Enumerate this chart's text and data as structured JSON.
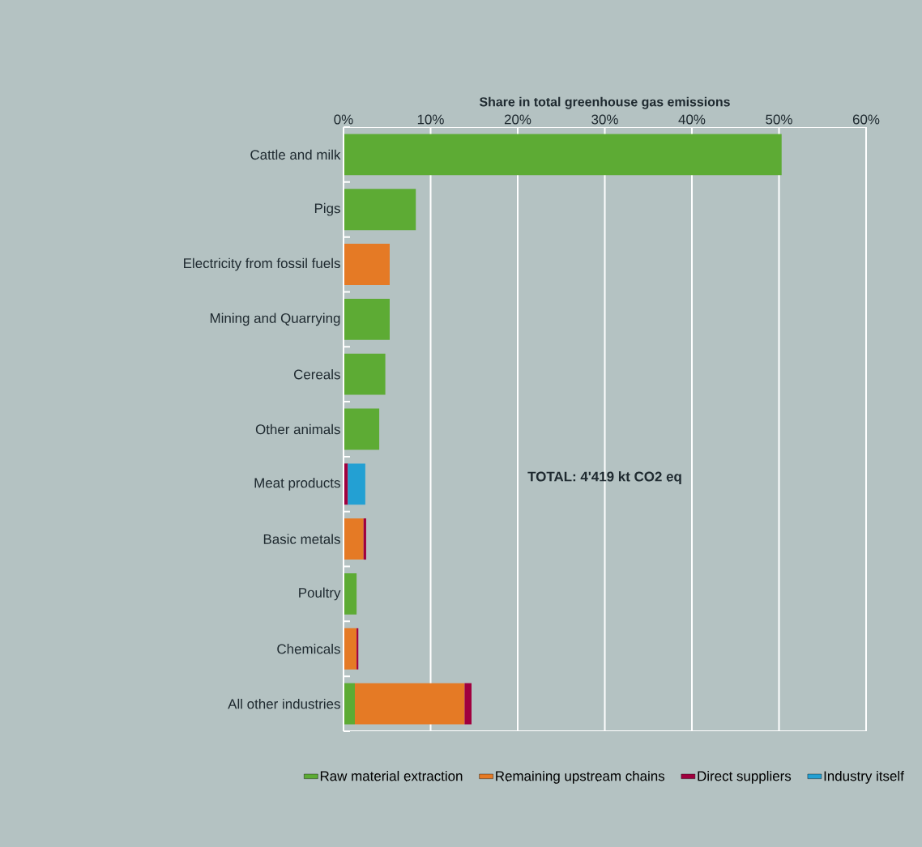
{
  "chart_data": {
    "type": "bar",
    "orientation": "horizontal",
    "stacked": true,
    "xlabel": "Share in total greenhouse gas emissions",
    "categories": [
      "Cattle and milk",
      "Pigs",
      "Electricity from fossil fuels",
      "Mining and Quarrying",
      "Cereals",
      "Other animals",
      "Meat products",
      "Basic metals",
      "Poultry",
      "Chemicals",
      "All other industries"
    ],
    "series": [
      {
        "name": "Raw material extraction",
        "color": "#5dab34",
        "values": [
          50.3,
          8.3,
          null,
          5.3,
          4.8,
          4.1,
          null,
          null,
          1.5,
          null,
          1.3
        ]
      },
      {
        "name": "Remaining upstream chains",
        "color": "#e57a25",
        "values": [
          null,
          null,
          5.3,
          null,
          null,
          null,
          null,
          2.3,
          null,
          1.5,
          12.6
        ]
      },
      {
        "name": "Direct suppliers",
        "color": "#a0003e",
        "values": [
          null,
          null,
          null,
          null,
          null,
          null,
          0.5,
          0.3,
          null,
          0.2,
          0.8
        ]
      },
      {
        "name": "Industry itself",
        "color": "#23a0d3",
        "values": [
          null,
          null,
          null,
          null,
          null,
          null,
          2.0,
          null,
          null,
          null,
          null
        ]
      }
    ],
    "xlim": [
      0,
      60
    ],
    "xticks": [
      {
        "value": 0,
        "label": "0%"
      },
      {
        "value": 10,
        "label": "10%"
      },
      {
        "value": 20,
        "label": "20%"
      },
      {
        "value": 30,
        "label": "30%"
      },
      {
        "value": 40,
        "label": "40%"
      },
      {
        "value": 50,
        "label": "50%"
      },
      {
        "value": 60,
        "label": "60%"
      }
    ],
    "grid": "x",
    "legend": "bottom",
    "annotations": [
      "TOTAL: 4'419 kt CO2 eq"
    ]
  }
}
